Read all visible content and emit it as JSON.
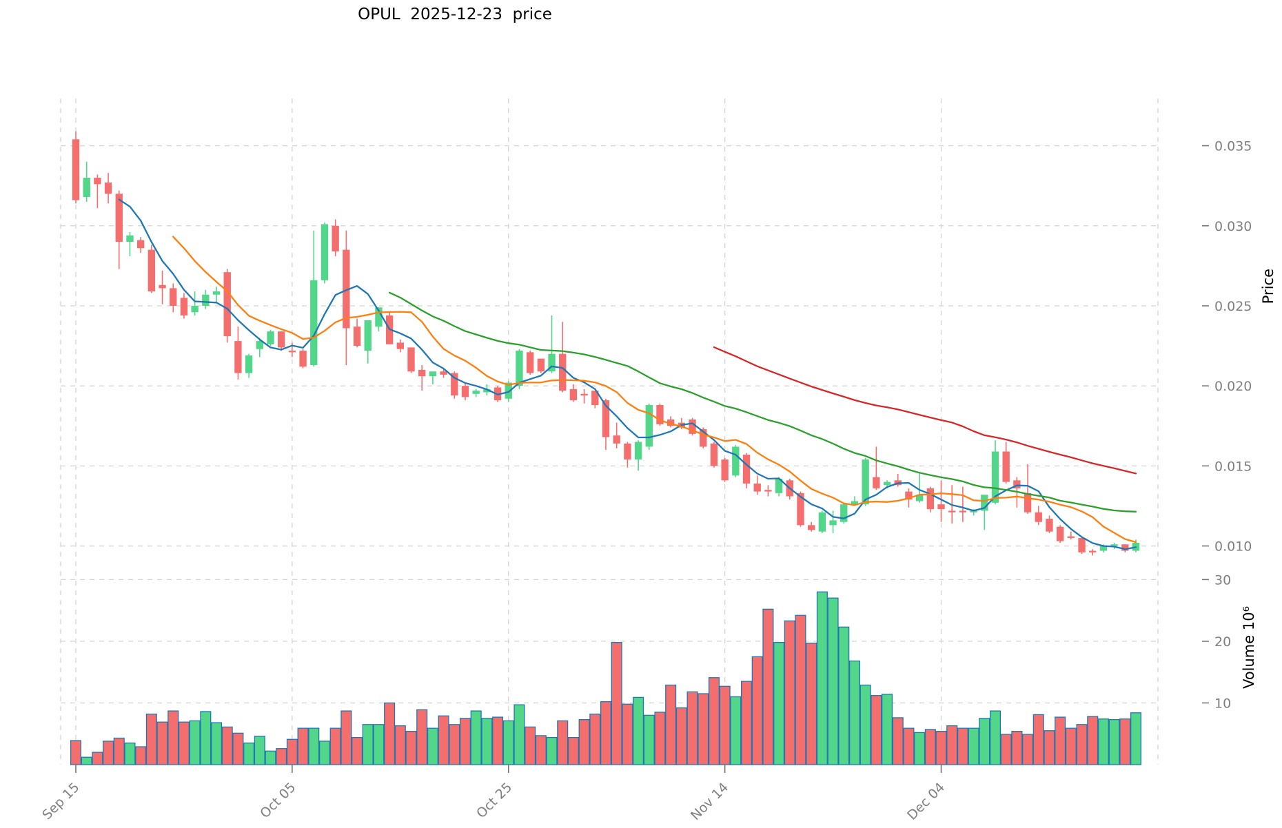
{
  "title": "OPUL  2025-12-23  price",
  "colors": {
    "up": "#52d689",
    "down": "#f56e6e",
    "volume_edge": "#1f77b4",
    "grid": "#d4d4d4",
    "tick_text": "#7f7f7f",
    "ma_colors": [
      "#1f77b4",
      "#ff7f0e",
      "#2ca02c",
      "#d62728"
    ]
  },
  "chart_data": {
    "type": "candlestick",
    "title": "OPUL  2025-12-23  price",
    "price_axis": {
      "label": "Price",
      "ticks": [
        0.01,
        0.015,
        0.02,
        0.025,
        0.03,
        0.035
      ],
      "ylim": [
        0.00925,
        0.03795
      ],
      "grid": true,
      "side": "right"
    },
    "volume_axis": {
      "label": "Volume 10⁶",
      "ticks": [
        10,
        20,
        30
      ],
      "ylim": [
        0,
        33.5
      ],
      "unit": "millions",
      "side": "right"
    },
    "x_axis": {
      "tick_labels": [
        "Sep 15",
        "Oct 05",
        "Oct 25",
        "Nov 14",
        "Dec 04"
      ],
      "tick_indices": [
        0,
        20,
        40,
        60,
        80
      ],
      "rotation": 45
    },
    "moving_averages": [
      {
        "window": 5,
        "color": "#1f77b4"
      },
      {
        "window": 10,
        "color": "#ff7f0e"
      },
      {
        "window": 30,
        "color": "#2ca02c"
      },
      {
        "window": 60,
        "color": "#d62728"
      }
    ],
    "dates": [
      "2025-09-15",
      "2025-09-16",
      "2025-09-17",
      "2025-09-18",
      "2025-09-19",
      "2025-09-20",
      "2025-09-21",
      "2025-09-22",
      "2025-09-23",
      "2025-09-24",
      "2025-09-25",
      "2025-09-26",
      "2025-09-27",
      "2025-09-28",
      "2025-09-29",
      "2025-09-30",
      "2025-10-01",
      "2025-10-02",
      "2025-10-03",
      "2025-10-04",
      "2025-10-05",
      "2025-10-06",
      "2025-10-07",
      "2025-10-08",
      "2025-10-09",
      "2025-10-10",
      "2025-10-11",
      "2025-10-12",
      "2025-10-13",
      "2025-10-14",
      "2025-10-15",
      "2025-10-16",
      "2025-10-17",
      "2025-10-18",
      "2025-10-19",
      "2025-10-20",
      "2025-10-21",
      "2025-10-22",
      "2025-10-23",
      "2025-10-24",
      "2025-10-25",
      "2025-10-26",
      "2025-10-27",
      "2025-10-28",
      "2025-10-29",
      "2025-10-30",
      "2025-10-31",
      "2025-11-01",
      "2025-11-02",
      "2025-11-03",
      "2025-11-04",
      "2025-11-05",
      "2025-11-06",
      "2025-11-07",
      "2025-11-08",
      "2025-11-09",
      "2025-11-10",
      "2025-11-11",
      "2025-11-12",
      "2025-11-13",
      "2025-11-14",
      "2025-11-15",
      "2025-11-16",
      "2025-11-17",
      "2025-11-18",
      "2025-11-19",
      "2025-11-20",
      "2025-11-21",
      "2025-11-22",
      "2025-11-23",
      "2025-11-24",
      "2025-11-25",
      "2025-11-26",
      "2025-11-27",
      "2025-11-28",
      "2025-11-29",
      "2025-11-30",
      "2025-12-01",
      "2025-12-02",
      "2025-12-03",
      "2025-12-04",
      "2025-12-05",
      "2025-12-06",
      "2025-12-07",
      "2025-12-08",
      "2025-12-09",
      "2025-12-10",
      "2025-12-11",
      "2025-12-12",
      "2025-12-13",
      "2025-12-14",
      "2025-12-15",
      "2025-12-16",
      "2025-12-17",
      "2025-12-18",
      "2025-12-19",
      "2025-12-20",
      "2025-12-21",
      "2025-12-22"
    ],
    "ohlcv": [
      [
        0.0354,
        0.0359,
        0.0314,
        0.0316,
        3.9
      ],
      [
        0.0318,
        0.034,
        0.0315,
        0.033,
        1.2
      ],
      [
        0.033,
        0.0332,
        0.0311,
        0.0326,
        2.0
      ],
      [
        0.0327,
        0.0333,
        0.0314,
        0.032,
        3.8
      ],
      [
        0.032,
        0.0322,
        0.0273,
        0.029,
        4.3
      ],
      [
        0.029,
        0.0296,
        0.0281,
        0.0294,
        3.5
      ],
      [
        0.0291,
        0.0293,
        0.0283,
        0.0286,
        2.9
      ],
      [
        0.0285,
        0.0288,
        0.0258,
        0.0259,
        8.2
      ],
      [
        0.0263,
        0.0272,
        0.0251,
        0.0261,
        6.9
      ],
      [
        0.0261,
        0.0264,
        0.0246,
        0.025,
        8.7
      ],
      [
        0.0255,
        0.0258,
        0.0242,
        0.0244,
        6.9
      ],
      [
        0.0246,
        0.0259,
        0.0244,
        0.025,
        7.1
      ],
      [
        0.025,
        0.026,
        0.0248,
        0.0257,
        8.6
      ],
      [
        0.0257,
        0.0262,
        0.0252,
        0.0259,
        6.8
      ],
      [
        0.0271,
        0.0273,
        0.0227,
        0.0231,
        6.1
      ],
      [
        0.0228,
        0.0237,
        0.0204,
        0.0208,
        5.1
      ],
      [
        0.0208,
        0.022,
        0.0205,
        0.0219,
        3.5
      ],
      [
        0.0223,
        0.023,
        0.0218,
        0.0228,
        4.6
      ],
      [
        0.0226,
        0.0235,
        0.0225,
        0.0234,
        2.2
      ],
      [
        0.0234,
        0.0234,
        0.0222,
        0.0224,
        2.6
      ],
      [
        0.0222,
        0.0227,
        0.0218,
        0.0221,
        4.1
      ],
      [
        0.0222,
        0.0223,
        0.0211,
        0.0212,
        5.9
      ],
      [
        0.0213,
        0.0297,
        0.0212,
        0.0266,
        5.9
      ],
      [
        0.0266,
        0.0302,
        0.0264,
        0.0301,
        3.8
      ],
      [
        0.03,
        0.0304,
        0.0281,
        0.0284,
        5.9
      ],
      [
        0.0285,
        0.0297,
        0.0213,
        0.0236,
        8.7
      ],
      [
        0.0237,
        0.0242,
        0.0224,
        0.0225,
        4.4
      ],
      [
        0.0222,
        0.0241,
        0.0214,
        0.0241,
        6.5
      ],
      [
        0.0237,
        0.0249,
        0.0234,
        0.0249,
        6.5
      ],
      [
        0.0244,
        0.0246,
        0.0226,
        0.0226,
        10.0
      ],
      [
        0.0227,
        0.0229,
        0.0221,
        0.0223,
        6.3
      ],
      [
        0.0224,
        0.0224,
        0.0208,
        0.0209,
        5.4
      ],
      [
        0.021,
        0.0213,
        0.0197,
        0.0206,
        8.9
      ],
      [
        0.0206,
        0.0209,
        0.0201,
        0.0209,
        5.9
      ],
      [
        0.0209,
        0.0211,
        0.0205,
        0.0207,
        7.9
      ],
      [
        0.0208,
        0.0209,
        0.0192,
        0.0194,
        6.5
      ],
      [
        0.02,
        0.0202,
        0.0191,
        0.0193,
        7.5
      ],
      [
        0.0195,
        0.0198,
        0.0193,
        0.0197,
        8.7
      ],
      [
        0.0196,
        0.0201,
        0.0194,
        0.0198,
        7.5
      ],
      [
        0.0199,
        0.02,
        0.019,
        0.0191,
        7.7
      ],
      [
        0.0192,
        0.0203,
        0.019,
        0.0202,
        7.1
      ],
      [
        0.02,
        0.0223,
        0.0198,
        0.0222,
        9.7
      ],
      [
        0.0221,
        0.0222,
        0.0207,
        0.0208,
        6.1
      ],
      [
        0.0217,
        0.0217,
        0.0208,
        0.0209,
        4.7
      ],
      [
        0.0209,
        0.0244,
        0.0208,
        0.022,
        4.4
      ],
      [
        0.022,
        0.024,
        0.0196,
        0.0197,
        7.1
      ],
      [
        0.0198,
        0.0201,
        0.019,
        0.0191,
        4.4
      ],
      [
        0.0195,
        0.0198,
        0.0189,
        0.0194,
        7.3
      ],
      [
        0.0197,
        0.0197,
        0.0186,
        0.0188,
        8.2
      ],
      [
        0.0191,
        0.0192,
        0.016,
        0.0168,
        10.2
      ],
      [
        0.0169,
        0.0177,
        0.0161,
        0.0164,
        19.8
      ],
      [
        0.0164,
        0.0165,
        0.0149,
        0.0154,
        9.8
      ],
      [
        0.0154,
        0.0166,
        0.0147,
        0.0165,
        10.9
      ],
      [
        0.0162,
        0.0189,
        0.016,
        0.0188,
        8.0
      ],
      [
        0.0188,
        0.0189,
        0.0175,
        0.0176,
        8.5
      ],
      [
        0.0179,
        0.0181,
        0.0174,
        0.0175,
        12.9
      ],
      [
        0.0177,
        0.018,
        0.0173,
        0.0174,
        9.2
      ],
      [
        0.0179,
        0.018,
        0.0169,
        0.017,
        11.8
      ],
      [
        0.0173,
        0.0174,
        0.0161,
        0.0162,
        11.5
      ],
      [
        0.0164,
        0.0165,
        0.0149,
        0.015,
        14.1
      ],
      [
        0.0154,
        0.0155,
        0.014,
        0.0141,
        12.7
      ],
      [
        0.0144,
        0.0163,
        0.0143,
        0.0162,
        11.0
      ],
      [
        0.0157,
        0.0158,
        0.0136,
        0.0139,
        13.5
      ],
      [
        0.0139,
        0.0144,
        0.0132,
        0.0134,
        17.5
      ],
      [
        0.0135,
        0.0138,
        0.0131,
        0.0134,
        25.2
      ],
      [
        0.0133,
        0.0143,
        0.0131,
        0.0142,
        19.8
      ],
      [
        0.0141,
        0.0142,
        0.0129,
        0.0131,
        23.3
      ],
      [
        0.0133,
        0.0134,
        0.0112,
        0.0113,
        24.2
      ],
      [
        0.0113,
        0.0115,
        0.0109,
        0.011,
        19.7
      ],
      [
        0.0109,
        0.0122,
        0.0108,
        0.0121,
        28.0
      ],
      [
        0.0113,
        0.0122,
        0.0108,
        0.0116,
        27.0
      ],
      [
        0.0115,
        0.0127,
        0.0114,
        0.0126,
        22.3
      ],
      [
        0.0126,
        0.0131,
        0.0125,
        0.0128,
        16.8
      ],
      [
        0.0126,
        0.0155,
        0.0125,
        0.0154,
        12.9
      ],
      [
        0.0143,
        0.0162,
        0.0135,
        0.0136,
        11.2
      ],
      [
        0.0138,
        0.0141,
        0.0136,
        0.014,
        11.4
      ],
      [
        0.0141,
        0.0145,
        0.0137,
        0.0138,
        7.6
      ],
      [
        0.0134,
        0.0136,
        0.0124,
        0.0129,
        5.9
      ],
      [
        0.0128,
        0.0146,
        0.0127,
        0.0132,
        5.2
      ],
      [
        0.0136,
        0.0137,
        0.0121,
        0.0123,
        5.7
      ],
      [
        0.0126,
        0.0141,
        0.0115,
        0.0123,
        5.4
      ],
      [
        0.0122,
        0.0138,
        0.0114,
        0.0121,
        6.3
      ],
      [
        0.0122,
        0.0137,
        0.0115,
        0.0121,
        5.9
      ],
      [
        0.0121,
        0.0123,
        0.0119,
        0.0122,
        5.9
      ],
      [
        0.0122,
        0.0132,
        0.011,
        0.0132,
        7.5
      ],
      [
        0.0127,
        0.0166,
        0.0126,
        0.0159,
        8.7
      ],
      [
        0.0159,
        0.0165,
        0.0139,
        0.014,
        4.9
      ],
      [
        0.0141,
        0.0143,
        0.0124,
        0.0136,
        5.4
      ],
      [
        0.0133,
        0.0151,
        0.012,
        0.0121,
        4.9
      ],
      [
        0.0121,
        0.0125,
        0.0113,
        0.0115,
        8.1
      ],
      [
        0.0117,
        0.0119,
        0.0108,
        0.0109,
        5.5
      ],
      [
        0.0112,
        0.0113,
        0.0102,
        0.0103,
        7.7
      ],
      [
        0.0106,
        0.0109,
        0.0104,
        0.0105,
        5.9
      ],
      [
        0.0105,
        0.0106,
        0.0095,
        0.0096,
        6.5
      ],
      [
        0.0097,
        0.0098,
        0.0094,
        0.0096,
        7.8
      ],
      [
        0.0097,
        0.0101,
        0.0096,
        0.01,
        7.4
      ],
      [
        0.01,
        0.0102,
        0.0098,
        0.0101,
        7.3
      ],
      [
        0.0101,
        0.0101,
        0.0096,
        0.0097,
        7.4
      ],
      [
        0.0097,
        0.0104,
        0.0096,
        0.0102,
        8.4
      ]
    ]
  }
}
